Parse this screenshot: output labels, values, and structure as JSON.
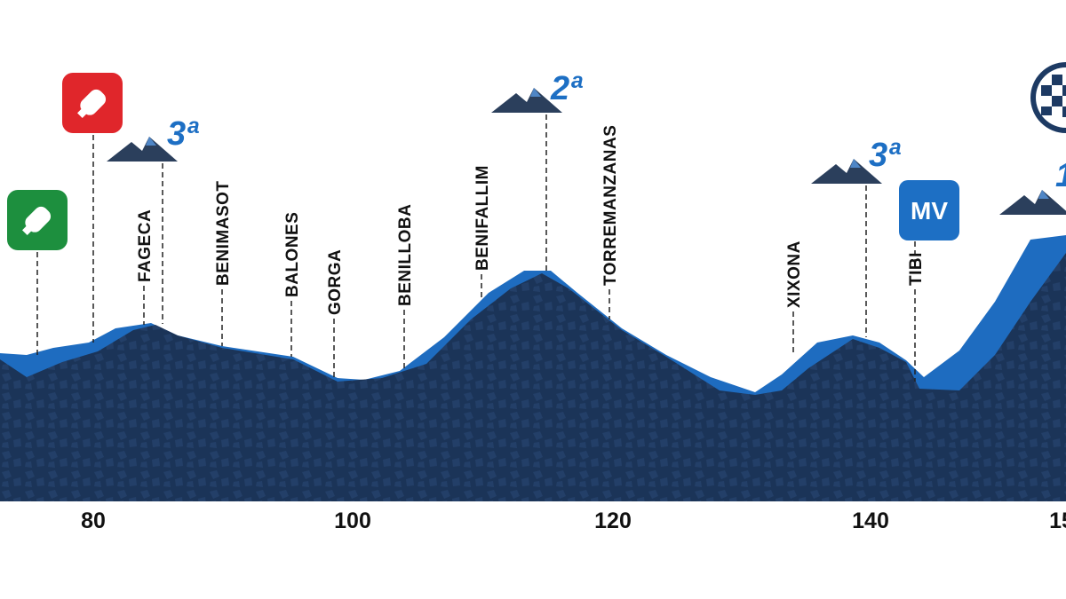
{
  "distance_labels": [
    "80",
    "100",
    "120",
    "140",
    "15"
  ],
  "places": [
    "FAGECA",
    "BENIMASOT",
    "BALONES",
    "GORGA",
    "BENILLOBA",
    "BENIFALLIM",
    "TORREMANZANAS",
    "XIXONA",
    "TIBI"
  ],
  "climbs": [
    "3ª",
    "2ª",
    "3ª",
    "1"
  ],
  "mountain_prize": "MV"
}
